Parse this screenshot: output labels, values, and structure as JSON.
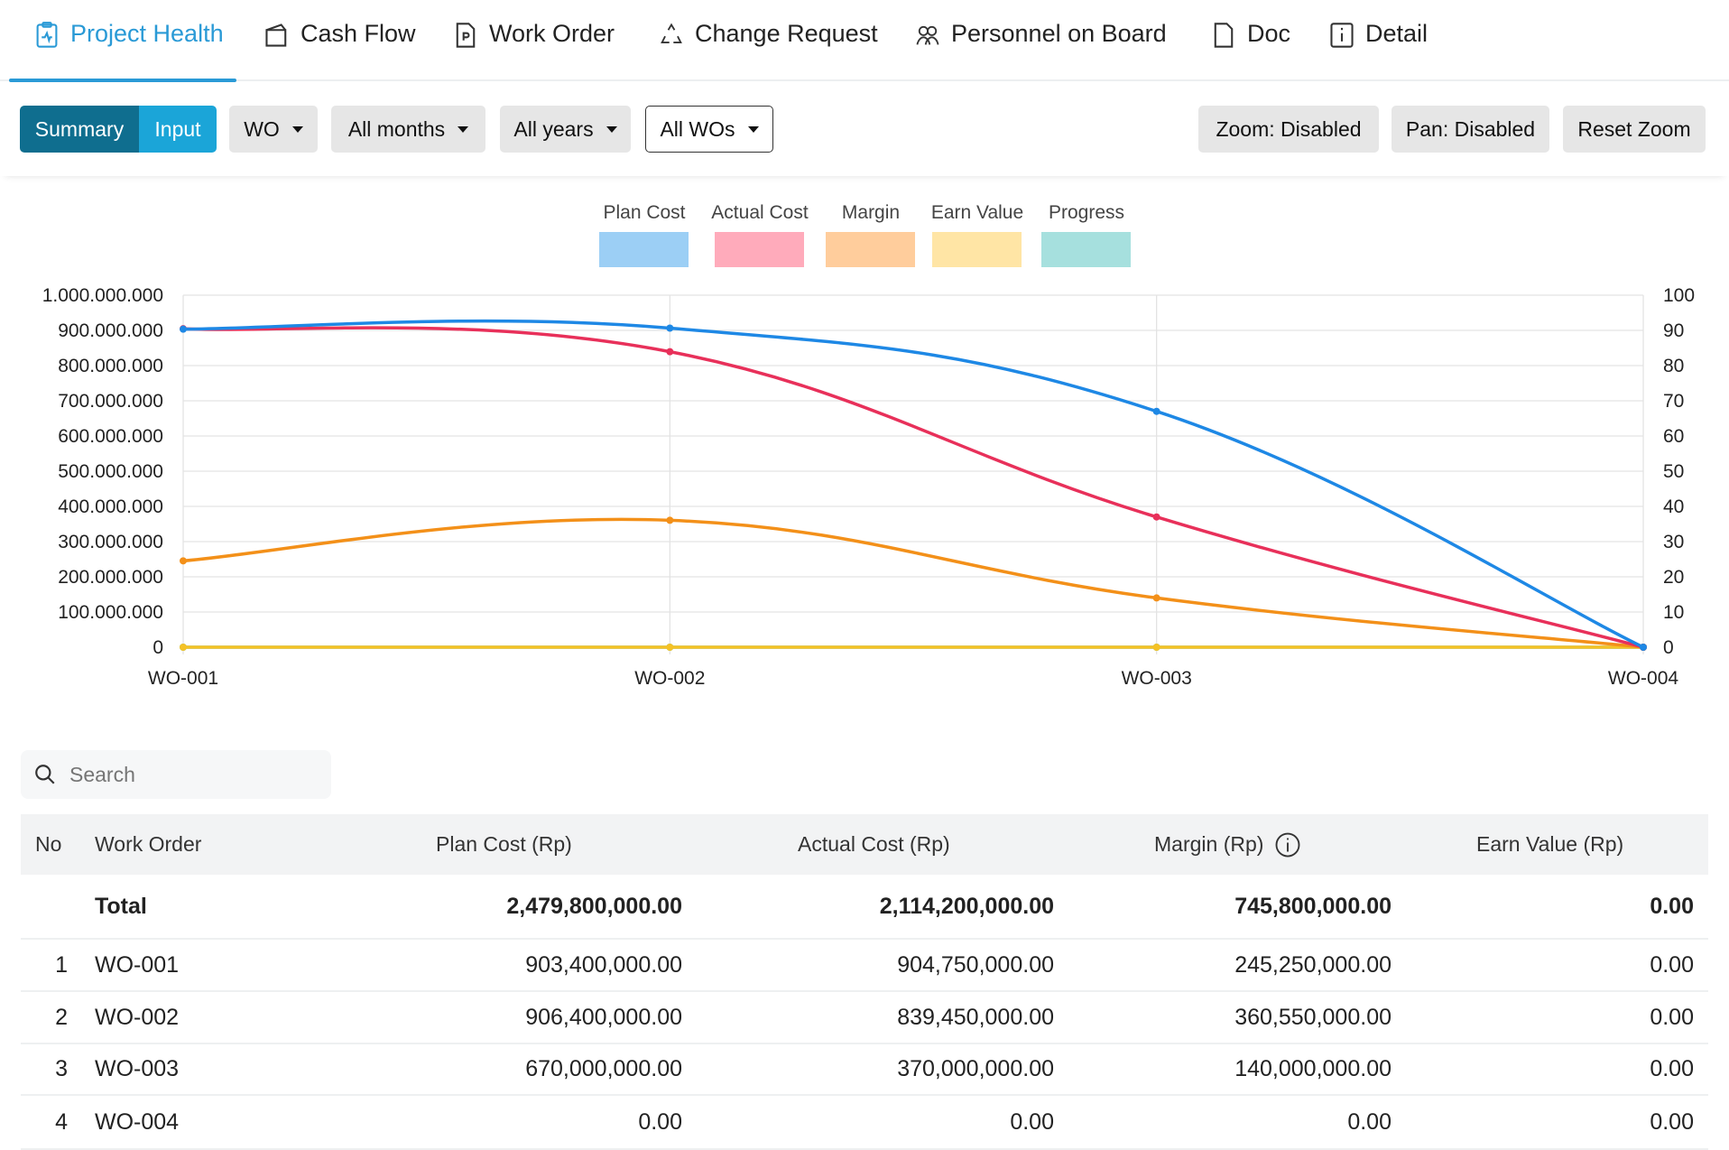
{
  "tabs": [
    {
      "label": "Project Health",
      "icon": "clipboard-pulse-icon",
      "active": true
    },
    {
      "label": "Cash Flow",
      "icon": "wallet-icon"
    },
    {
      "label": "Work Order",
      "icon": "file-p-icon"
    },
    {
      "label": "Change Request",
      "icon": "recycle-icon"
    },
    {
      "label": "Personnel on Board",
      "icon": "users-icon"
    },
    {
      "label": "Doc",
      "icon": "document-icon"
    },
    {
      "label": "Detail",
      "icon": "info-square-icon"
    }
  ],
  "toolbar": {
    "summary": "Summary",
    "input": "Input",
    "wo": "WO",
    "months": "All months",
    "years": "All years",
    "wos": "All WOs",
    "zoom": "Zoom: Disabled",
    "pan": "Pan: Disabled",
    "reset": "Reset Zoom"
  },
  "colors": {
    "accent": "#2a9ad6",
    "summary": "#0f6e8f",
    "input": "#1ba5d8"
  },
  "chart_data": {
    "type": "line",
    "categories": [
      "WO-001",
      "WO-002",
      "WO-003",
      "WO-004"
    ],
    "ylim": [
      0,
      1000000000
    ],
    "y2lim": [
      0,
      100
    ],
    "yticks": [
      "0",
      "100.000.000",
      "200.000.000",
      "300.000.000",
      "400.000.000",
      "500.000.000",
      "600.000.000",
      "700.000.000",
      "800.000.000",
      "900.000.000",
      "1.000.000.000"
    ],
    "y2ticks": [
      "0",
      "10",
      "20",
      "30",
      "40",
      "50",
      "60",
      "70",
      "80",
      "90",
      "100"
    ],
    "grid": true,
    "legend_placement": "top",
    "series": [
      {
        "name": "Plan Cost",
        "values": [
          903400000,
          906400000,
          670000000,
          0
        ],
        "color": "#1e88e5",
        "legend_color": "#9ccff5",
        "axis": "left"
      },
      {
        "name": "Actual Cost",
        "values": [
          904750000,
          839450000,
          370000000,
          0
        ],
        "color": "#e8305a",
        "legend_color": "#ffabbb",
        "axis": "left"
      },
      {
        "name": "Margin",
        "values": [
          245250000,
          360550000,
          140000000,
          0
        ],
        "color": "#f39019",
        "legend_color": "#ffcd9c",
        "axis": "left"
      },
      {
        "name": "Earn Value",
        "values": [
          0,
          0,
          0,
          0
        ],
        "color": "#f5c226",
        "legend_color": "#ffe5a5",
        "axis": "left"
      },
      {
        "name": "Progress",
        "values": [
          0,
          0,
          0,
          0
        ],
        "color": "#4bc0c0",
        "legend_color": "#a6e0de",
        "axis": "right"
      }
    ]
  },
  "search": {
    "placeholder": "Search"
  },
  "table": {
    "headers": [
      "No",
      "Work Order",
      "Plan Cost (Rp)",
      "Actual Cost (Rp)",
      "Margin (Rp)",
      "Earn Value (Rp)"
    ],
    "total": {
      "label": "Total",
      "plan": "2,479,800,000.00",
      "actual": "2,114,200,000.00",
      "margin": "745,800,000.00",
      "earn": "0.00"
    },
    "rows": [
      {
        "no": "1",
        "wo": "WO-001",
        "plan": "903,400,000.00",
        "actual": "904,750,000.00",
        "margin": "245,250,000.00",
        "earn": "0.00"
      },
      {
        "no": "2",
        "wo": "WO-002",
        "plan": "906,400,000.00",
        "actual": "839,450,000.00",
        "margin": "360,550,000.00",
        "earn": "0.00"
      },
      {
        "no": "3",
        "wo": "WO-003",
        "plan": "670,000,000.00",
        "actual": "370,000,000.00",
        "margin": "140,000,000.00",
        "earn": "0.00"
      },
      {
        "no": "4",
        "wo": "WO-004",
        "plan": "0.00",
        "actual": "0.00",
        "margin": "0.00",
        "earn": "0.00"
      }
    ]
  }
}
